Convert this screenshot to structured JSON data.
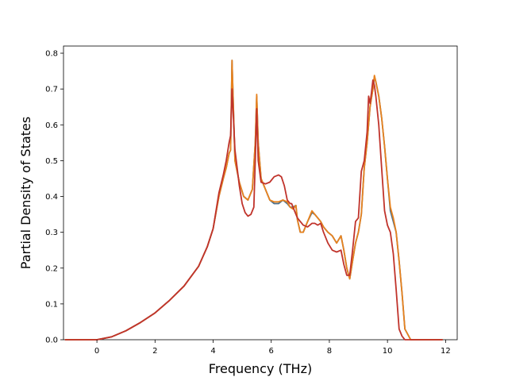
{
  "chart_data": {
    "type": "line",
    "xlabel": "Frequency (THz)",
    "ylabel": "Partial Density of States",
    "xlim": [
      -1.15,
      12.4
    ],
    "ylim": [
      0,
      0.82
    ],
    "xticks": [
      "0",
      "2",
      "4",
      "6",
      "8",
      "10",
      "12"
    ],
    "yticks": [
      "0.0",
      "0.1",
      "0.2",
      "0.3",
      "0.4",
      "0.5",
      "0.6",
      "0.7",
      "0.8"
    ],
    "grid": false,
    "series": [
      {
        "color": "#4a6f8a",
        "x": [
          -1.1,
          0,
          0.5,
          1,
          1.5,
          2,
          2.5,
          3,
          3.5,
          3.8,
          4,
          4.2,
          4.35,
          4.45,
          4.55,
          4.6,
          4.65,
          4.75,
          4.9,
          5.05,
          5.2,
          5.35,
          5.45,
          5.5,
          5.55,
          5.65,
          5.8,
          5.95,
          6.1,
          6.25,
          6.4,
          6.55,
          6.65,
          6.75,
          6.85,
          6.9,
          7,
          7.1,
          7.25,
          7.4,
          7.5,
          7.6,
          7.7,
          7.8,
          7.95,
          8.1,
          8.25,
          8.4,
          8.5,
          8.6,
          8.7,
          8.8,
          8.9,
          9,
          9.1,
          9.2,
          9.3,
          9.4,
          9.5,
          9.55,
          9.6,
          9.7,
          9.8,
          9.9,
          10,
          10.1,
          10.2,
          10.3,
          10.4,
          10.5,
          10.6,
          10.8,
          11.9
        ],
        "y": [
          0,
          0,
          0.008,
          0.025,
          0.048,
          0.075,
          0.11,
          0.15,
          0.205,
          0.26,
          0.31,
          0.4,
          0.45,
          0.48,
          0.52,
          0.53,
          0.78,
          0.5,
          0.44,
          0.4,
          0.39,
          0.42,
          0.55,
          0.68,
          0.55,
          0.45,
          0.42,
          0.39,
          0.38,
          0.38,
          0.39,
          0.38,
          0.37,
          0.37,
          0.375,
          0.335,
          0.3,
          0.3,
          0.33,
          0.355,
          0.35,
          0.34,
          0.33,
          0.315,
          0.3,
          0.29,
          0.27,
          0.29,
          0.25,
          0.2,
          0.17,
          0.22,
          0.27,
          0.3,
          0.35,
          0.48,
          0.55,
          0.65,
          0.7,
          0.735,
          0.72,
          0.68,
          0.62,
          0.54,
          0.45,
          0.36,
          0.33,
          0.3,
          0.22,
          0.13,
          0.03,
          0,
          0
        ]
      },
      {
        "color": "#e8821e",
        "x": [
          -1.1,
          0,
          0.5,
          1,
          1.5,
          2,
          2.5,
          3,
          3.5,
          3.8,
          4,
          4.2,
          4.35,
          4.45,
          4.55,
          4.6,
          4.65,
          4.75,
          4.9,
          5.05,
          5.2,
          5.35,
          5.45,
          5.5,
          5.55,
          5.65,
          5.8,
          5.95,
          6.1,
          6.25,
          6.4,
          6.55,
          6.65,
          6.75,
          6.85,
          6.9,
          7,
          7.1,
          7.25,
          7.4,
          7.5,
          7.6,
          7.7,
          7.8,
          7.95,
          8.1,
          8.25,
          8.4,
          8.5,
          8.6,
          8.7,
          8.8,
          8.9,
          9,
          9.1,
          9.2,
          9.3,
          9.4,
          9.5,
          9.55,
          9.6,
          9.7,
          9.8,
          9.9,
          10,
          10.1,
          10.2,
          10.3,
          10.4,
          10.5,
          10.6,
          10.8,
          11.9
        ],
        "y": [
          0,
          0,
          0.008,
          0.025,
          0.048,
          0.075,
          0.11,
          0.15,
          0.205,
          0.26,
          0.31,
          0.4,
          0.45,
          0.48,
          0.52,
          0.53,
          0.78,
          0.5,
          0.44,
          0.4,
          0.39,
          0.42,
          0.55,
          0.685,
          0.55,
          0.45,
          0.42,
          0.39,
          0.385,
          0.385,
          0.39,
          0.385,
          0.37,
          0.365,
          0.375,
          0.335,
          0.3,
          0.3,
          0.33,
          0.36,
          0.35,
          0.34,
          0.33,
          0.315,
          0.3,
          0.29,
          0.27,
          0.29,
          0.25,
          0.2,
          0.17,
          0.22,
          0.27,
          0.3,
          0.35,
          0.48,
          0.55,
          0.65,
          0.7,
          0.738,
          0.72,
          0.68,
          0.62,
          0.54,
          0.45,
          0.37,
          0.34,
          0.3,
          0.22,
          0.13,
          0.03,
          0,
          0
        ]
      },
      {
        "color": "#c0332b",
        "x": [
          -1.1,
          0,
          0.5,
          1,
          1.5,
          2,
          2.5,
          3,
          3.5,
          3.8,
          4,
          4.2,
          4.35,
          4.45,
          4.55,
          4.6,
          4.65,
          4.75,
          4.9,
          5,
          5.1,
          5.2,
          5.3,
          5.4,
          5.45,
          5.5,
          5.55,
          5.65,
          5.8,
          5.95,
          6.1,
          6.25,
          6.35,
          6.45,
          6.55,
          6.65,
          6.7,
          6.8,
          6.9,
          7,
          7.1,
          7.25,
          7.4,
          7.5,
          7.6,
          7.7,
          7.8,
          7.95,
          8.1,
          8.25,
          8.4,
          8.5,
          8.6,
          8.7,
          8.8,
          8.9,
          9,
          9.1,
          9.2,
          9.3,
          9.35,
          9.4,
          9.45,
          9.5,
          9.55,
          9.6,
          9.7,
          9.8,
          9.9,
          10,
          10.1,
          10.2,
          10.3,
          10.4,
          10.5,
          10.6,
          10.8,
          11.9
        ],
        "y": [
          0,
          0,
          0.008,
          0.025,
          0.048,
          0.075,
          0.11,
          0.15,
          0.205,
          0.26,
          0.31,
          0.41,
          0.46,
          0.5,
          0.55,
          0.57,
          0.7,
          0.53,
          0.43,
          0.38,
          0.355,
          0.345,
          0.35,
          0.37,
          0.5,
          0.645,
          0.5,
          0.44,
          0.435,
          0.44,
          0.455,
          0.46,
          0.455,
          0.43,
          0.39,
          0.38,
          0.38,
          0.36,
          0.34,
          0.33,
          0.32,
          0.315,
          0.325,
          0.325,
          0.32,
          0.325,
          0.3,
          0.27,
          0.25,
          0.245,
          0.25,
          0.21,
          0.18,
          0.18,
          0.25,
          0.33,
          0.34,
          0.47,
          0.5,
          0.58,
          0.68,
          0.66,
          0.69,
          0.725,
          0.71,
          0.68,
          0.6,
          0.48,
          0.36,
          0.32,
          0.3,
          0.24,
          0.14,
          0.03,
          0.01,
          0,
          0,
          0
        ]
      }
    ]
  }
}
